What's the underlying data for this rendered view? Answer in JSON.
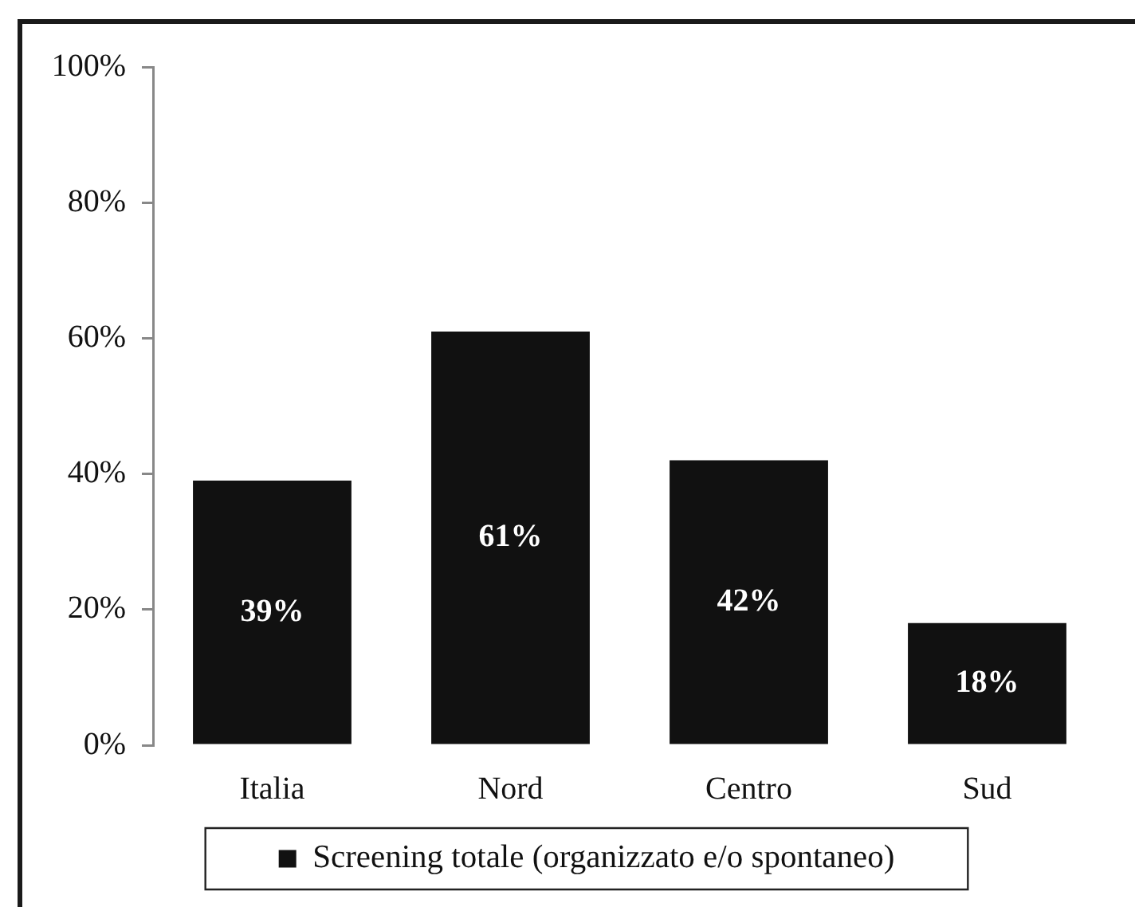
{
  "chart_data": {
    "type": "bar",
    "categories": [
      "Italia",
      "Nord",
      "Centro",
      "Sud"
    ],
    "series": [
      {
        "name": "Screening totale (organizzato e/o spontaneo)",
        "color": "#111111",
        "values": [
          39,
          61,
          42,
          18
        ],
        "value_labels": [
          "39%",
          "61%",
          "42%",
          "18%"
        ]
      }
    ],
    "ylim": [
      0,
      100
    ],
    "yticks": [
      {
        "value": 0,
        "label": "0%"
      },
      {
        "value": 20,
        "label": "20%"
      },
      {
        "value": 40,
        "label": "40%"
      },
      {
        "value": 60,
        "label": "60%"
      },
      {
        "value": 80,
        "label": "80%"
      },
      {
        "value": 100,
        "label": "100%"
      }
    ],
    "legend": "bottom"
  }
}
